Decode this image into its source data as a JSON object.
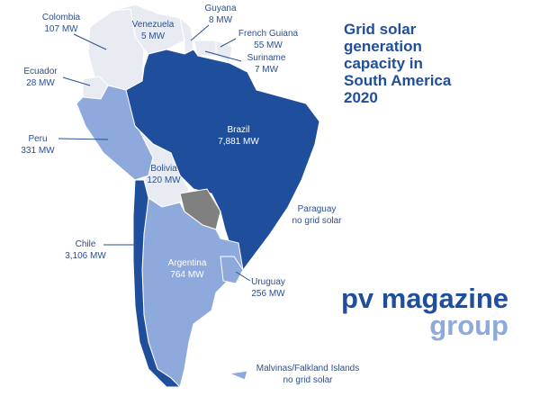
{
  "title_lines": [
    "Grid solar",
    "generation",
    "capacity in",
    "South America",
    "2020"
  ],
  "countries": [
    {
      "name": "Colombia",
      "capacity": "107 MW"
    },
    {
      "name": "Venezuela",
      "capacity": "5 MW"
    },
    {
      "name": "Guyana",
      "capacity": "8 MW"
    },
    {
      "name": "French Guiana",
      "capacity": "55 MW"
    },
    {
      "name": "Suriname",
      "capacity": "7 MW"
    },
    {
      "name": "Ecuador",
      "capacity": "28 MW"
    },
    {
      "name": "Peru",
      "capacity": "331 MW"
    },
    {
      "name": "Brazil",
      "capacity": "7,881 MW"
    },
    {
      "name": "Bolivia",
      "capacity": "120 MW"
    },
    {
      "name": "Paraguay",
      "capacity": "no grid solar"
    },
    {
      "name": "Chile",
      "capacity": "3,106 MW"
    },
    {
      "name": "Argentina",
      "capacity": "764 MW"
    },
    {
      "name": "Uruguay",
      "capacity": "256 MW"
    },
    {
      "name": "Malvinas/Falkland Islands",
      "capacity": "no grid solar"
    }
  ],
  "logo": {
    "name": "pv magazine",
    "sub": "group"
  }
}
